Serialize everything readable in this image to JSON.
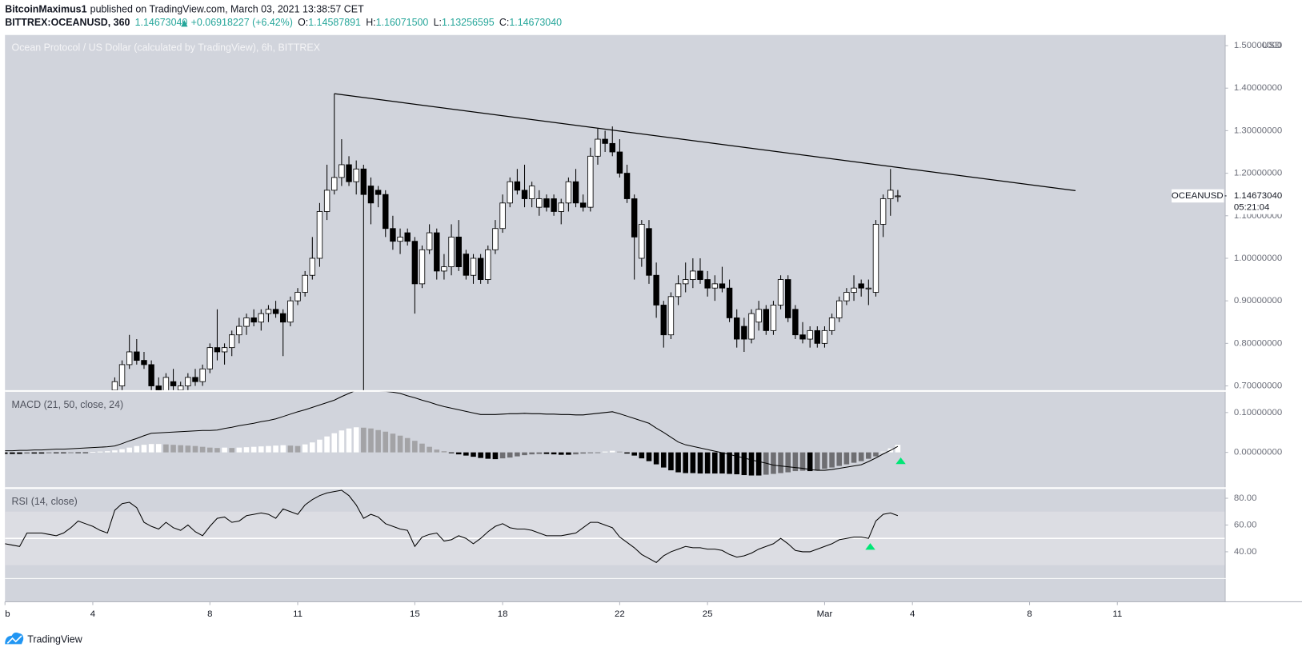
{
  "header": {
    "author": "BitcoinMaximus1",
    "published": "published on TradingView.com, March 03, 2021 13:38:57 CET",
    "symbol": "BITTREX:OCEANUSD, 360",
    "last": "1.14673040",
    "change": "+0.06918227 (+6.42%)",
    "o_label": "O:",
    "o": "1.14587891",
    "h_label": "H:",
    "h": "1.16071500",
    "l_label": "L:",
    "l": "1.13256595",
    "c_label": "C:",
    "c": "1.14673040"
  },
  "footer": {
    "brand": "TradingView"
  },
  "chart_data": {
    "type": "candlestick",
    "title": "Ocean Protocol / US Dollar (calculated by TradingView), 6h, BITTREX",
    "currency": "USD",
    "colors": {
      "up": "#ffffff",
      "down": "#000000",
      "wick": "#000000",
      "trendline": "#000000"
    },
    "xlim": [
      0,
      41.67
    ],
    "xticks": [
      {
        "value": 0,
        "label": "b"
      },
      {
        "value": 3,
        "label": "4"
      },
      {
        "value": 7,
        "label": "8"
      },
      {
        "value": 10,
        "label": "11"
      },
      {
        "value": 14,
        "label": "15"
      },
      {
        "value": 17,
        "label": "18"
      },
      {
        "value": 21,
        "label": "22"
      },
      {
        "value": 24,
        "label": "25"
      },
      {
        "value": 28,
        "label": "Mar"
      },
      {
        "value": 31,
        "label": "4"
      },
      {
        "value": 35,
        "label": "8"
      },
      {
        "value": 38,
        "label": "11"
      }
    ],
    "ylim": [
      0.69,
      1.525
    ],
    "yticks": [
      {
        "value": 1.5,
        "label": "1.50000000"
      },
      {
        "value": 1.4,
        "label": "1.40000000"
      },
      {
        "value": 1.3,
        "label": "1.30000000"
      },
      {
        "value": 1.2,
        "label": "1.20000000"
      },
      {
        "value": 1.1,
        "label": "1.10000000"
      },
      {
        "value": 1.0,
        "label": "1.00000000"
      },
      {
        "value": 0.9,
        "label": "0.90000000"
      },
      {
        "value": 0.8,
        "label": "0.80000000"
      },
      {
        "value": 0.7,
        "label": "0.70000000"
      }
    ],
    "price_tag": {
      "symbol": "OCEANUSD",
      "price": "1.14673040",
      "countdown": "05:21:04"
    },
    "trendline": {
      "x": [
        11.25,
        36.57
      ],
      "y": [
        1.387,
        1.159
      ]
    },
    "x": [
      0,
      0.25,
      0.5,
      0.75,
      1,
      1.25,
      1.5,
      1.75,
      2,
      2.25,
      2.5,
      2.75,
      3,
      3.25,
      3.5,
      3.75,
      4,
      4.25,
      4.5,
      4.75,
      5,
      5.25,
      5.5,
      5.75,
      6,
      6.25,
      6.5,
      6.75,
      7,
      7.25,
      7.5,
      7.75,
      8,
      8.25,
      8.5,
      8.75,
      9,
      9.25,
      9.5,
      9.75,
      10,
      10.25,
      10.5,
      10.75,
      11,
      11.25,
      11.5,
      11.75,
      12,
      12.25,
      12.5,
      12.75,
      13,
      13.25,
      13.5,
      13.75,
      14,
      14.25,
      14.5,
      14.75,
      15,
      15.25,
      15.5,
      15.75,
      16,
      16.25,
      16.5,
      16.75,
      17,
      17.25,
      17.5,
      17.75,
      18,
      18.25,
      18.5,
      18.75,
      19,
      19.25,
      19.5,
      19.75,
      20,
      20.25,
      20.5,
      20.75,
      21,
      21.25,
      21.5,
      21.75,
      22,
      22.25,
      22.5,
      22.75,
      23,
      23.25,
      23.5,
      23.75,
      24,
      24.25,
      24.5,
      24.75,
      25,
      25.25,
      25.5,
      25.75,
      26,
      26.25,
      26.5,
      26.75,
      27,
      27.25,
      27.5,
      27.75,
      28,
      28.25,
      28.5,
      28.75,
      29,
      29.25,
      29.5,
      29.75,
      30,
      30.25,
      30.5
    ],
    "candles": [
      null,
      null,
      null,
      null,
      null,
      null,
      null,
      null,
      null,
      null,
      null,
      null,
      null,
      null,
      null,
      [
        0.69,
        0.72,
        0.68,
        0.71
      ],
      [
        0.7,
        0.76,
        0.69,
        0.75
      ],
      [
        0.75,
        0.82,
        0.74,
        0.78
      ],
      [
        0.78,
        0.81,
        0.75,
        0.76
      ],
      [
        0.76,
        0.78,
        0.74,
        0.75
      ],
      [
        0.75,
        0.76,
        0.69,
        0.7
      ],
      [
        0.7,
        0.72,
        0.66,
        0.68
      ],
      [
        0.68,
        0.73,
        0.67,
        0.72
      ],
      [
        0.71,
        0.74,
        0.69,
        0.7
      ],
      [
        0.69,
        0.71,
        0.67,
        0.7
      ],
      [
        0.7,
        0.73,
        0.69,
        0.72
      ],
      [
        0.72,
        0.74,
        0.7,
        0.71
      ],
      [
        0.71,
        0.75,
        0.7,
        0.74
      ],
      [
        0.74,
        0.8,
        0.73,
        0.79
      ],
      [
        0.79,
        0.88,
        0.76,
        0.78
      ],
      [
        0.78,
        0.8,
        0.75,
        0.79
      ],
      [
        0.79,
        0.83,
        0.77,
        0.82
      ],
      [
        0.82,
        0.86,
        0.8,
        0.84
      ],
      [
        0.84,
        0.87,
        0.82,
        0.86
      ],
      [
        0.86,
        0.88,
        0.84,
        0.85
      ],
      [
        0.85,
        0.88,
        0.83,
        0.87
      ],
      [
        0.87,
        0.89,
        0.85,
        0.88
      ],
      [
        0.88,
        0.9,
        0.86,
        0.87
      ],
      [
        0.87,
        0.88,
        0.77,
        0.85
      ],
      [
        0.85,
        0.91,
        0.84,
        0.9
      ],
      [
        0.9,
        0.93,
        0.89,
        0.92
      ],
      [
        0.92,
        0.97,
        0.91,
        0.96
      ],
      [
        0.96,
        1.05,
        0.95,
        1.0
      ],
      [
        1.0,
        1.13,
        0.98,
        1.11
      ],
      [
        1.11,
        1.22,
        1.09,
        1.16
      ],
      [
        1.16,
        1.387,
        1.15,
        1.19
      ],
      [
        1.19,
        1.28,
        1.17,
        1.22
      ],
      [
        1.22,
        1.24,
        1.17,
        1.18
      ],
      [
        1.18,
        1.23,
        1.15,
        1.21
      ],
      [
        1.21,
        1.22,
        0.69,
        1.15
      ],
      [
        1.17,
        1.19,
        1.08,
        1.13
      ],
      [
        1.16,
        1.17,
        1.12,
        1.15
      ],
      [
        1.15,
        1.16,
        1.05,
        1.07
      ],
      [
        1.07,
        1.1,
        1.02,
        1.04
      ],
      [
        1.04,
        1.07,
        1.01,
        1.05
      ],
      [
        1.06,
        1.07,
        1.03,
        1.04
      ],
      [
        1.04,
        1.05,
        0.87,
        0.94
      ],
      [
        0.94,
        1.03,
        0.93,
        1.02
      ],
      [
        1.02,
        1.08,
        1.01,
        1.06
      ],
      [
        1.06,
        1.07,
        0.95,
        0.97
      ],
      [
        0.97,
        1.01,
        0.95,
        0.98
      ],
      [
        0.98,
        1.08,
        0.96,
        1.05
      ],
      [
        1.05,
        1.09,
        0.97,
        0.98
      ],
      [
        1.01,
        1.02,
        0.95,
        0.96
      ],
      [
        0.96,
        1.01,
        0.94,
        1.0
      ],
      [
        1.0,
        1.01,
        0.94,
        0.95
      ],
      [
        0.95,
        1.03,
        0.94,
        1.02
      ],
      [
        1.02,
        1.09,
        1.01,
        1.07
      ],
      [
        1.07,
        1.15,
        1.06,
        1.13
      ],
      [
        1.13,
        1.19,
        1.12,
        1.18
      ],
      [
        1.18,
        1.21,
        1.15,
        1.16
      ],
      [
        1.16,
        1.22,
        1.12,
        1.14
      ],
      [
        1.14,
        1.18,
        1.12,
        1.17
      ],
      [
        1.12,
        1.16,
        1.1,
        1.14
      ],
      [
        1.14,
        1.15,
        1.11,
        1.12
      ],
      [
        1.14,
        1.15,
        1.1,
        1.11
      ],
      [
        1.11,
        1.14,
        1.08,
        1.13
      ],
      [
        1.13,
        1.19,
        1.11,
        1.18
      ],
      [
        1.18,
        1.21,
        1.12,
        1.13
      ],
      [
        1.13,
        1.15,
        1.11,
        1.12
      ],
      [
        1.12,
        1.26,
        1.11,
        1.24
      ],
      [
        1.24,
        1.305,
        1.22,
        1.28
      ],
      [
        1.28,
        1.3,
        1.25,
        1.27
      ],
      [
        1.27,
        1.31,
        1.24,
        1.25
      ],
      [
        1.25,
        1.28,
        1.19,
        1.2
      ],
      [
        1.2,
        1.22,
        1.13,
        1.14
      ],
      [
        1.14,
        1.15,
        0.95,
        1.05
      ],
      [
        1.0,
        1.09,
        0.98,
        1.08
      ],
      [
        1.07,
        1.09,
        0.94,
        0.96
      ],
      [
        0.96,
        0.99,
        0.86,
        0.89
      ],
      [
        0.89,
        0.9,
        0.79,
        0.82
      ],
      [
        0.82,
        0.92,
        0.81,
        0.91
      ],
      [
        0.91,
        0.96,
        0.89,
        0.94
      ],
      [
        0.94,
        0.99,
        0.92,
        0.95
      ],
      [
        0.95,
        1.0,
        0.93,
        0.97
      ],
      [
        0.97,
        1.0,
        0.94,
        0.95
      ],
      [
        0.95,
        0.97,
        0.91,
        0.93
      ],
      [
        0.93,
        0.96,
        0.9,
        0.94
      ],
      [
        0.94,
        0.98,
        0.92,
        0.93
      ],
      [
        0.93,
        0.95,
        0.85,
        0.86
      ],
      [
        0.86,
        0.88,
        0.79,
        0.81
      ],
      [
        0.84,
        0.86,
        0.78,
        0.81
      ],
      [
        0.81,
        0.88,
        0.8,
        0.87
      ],
      [
        0.85,
        0.9,
        0.83,
        0.88
      ],
      [
        0.88,
        0.89,
        0.82,
        0.83
      ],
      [
        0.83,
        0.9,
        0.82,
        0.89
      ],
      [
        0.89,
        0.96,
        0.88,
        0.95
      ],
      [
        0.95,
        0.96,
        0.85,
        0.86
      ],
      [
        0.88,
        0.89,
        0.81,
        0.82
      ],
      [
        0.82,
        0.85,
        0.8,
        0.81
      ],
      [
        0.81,
        0.84,
        0.79,
        0.83
      ],
      [
        0.83,
        0.84,
        0.79,
        0.8
      ],
      [
        0.8,
        0.84,
        0.79,
        0.83
      ],
      [
        0.83,
        0.87,
        0.82,
        0.86
      ],
      [
        0.86,
        0.91,
        0.85,
        0.9
      ],
      [
        0.9,
        0.93,
        0.89,
        0.92
      ],
      [
        0.92,
        0.96,
        0.9,
        0.93
      ],
      [
        0.94,
        0.95,
        0.91,
        0.93
      ],
      [
        0.93,
        0.95,
        0.89,
        0.93
      ],
      [
        0.92,
        1.09,
        0.91,
        1.08
      ],
      [
        1.08,
        1.15,
        1.05,
        1.14
      ],
      [
        1.14,
        1.21,
        1.1,
        1.16
      ],
      [
        1.14587891,
        1.160715,
        1.13256595,
        1.1467304
      ]
    ],
    "macd": {
      "title": "MACD (21, 50, close, 24)",
      "ylim": [
        -0.0875,
        0.152
      ],
      "yticks": [
        {
          "value": 0.1,
          "label": "0.10000000"
        },
        {
          "value": 0,
          "label": "0.00000000"
        }
      ],
      "line_color": "#000000",
      "hist_colors": {
        "pos_up": "#ffffff",
        "pos_down": "#a3a3a6",
        "neg_down": "#000000",
        "neg_up": "#6e6e72"
      },
      "line": [
        0.004,
        0.004,
        0.005,
        0.005,
        0.006,
        0.006,
        0.007,
        0.008,
        0.008,
        0.009,
        0.01,
        0.011,
        0.012,
        0.013,
        0.014,
        0.016,
        0.022,
        0.029,
        0.035,
        0.042,
        0.048,
        0.049,
        0.05,
        0.051,
        0.052,
        0.053,
        0.054,
        0.055,
        0.055,
        0.056,
        0.06,
        0.063,
        0.067,
        0.07,
        0.073,
        0.077,
        0.08,
        0.084,
        0.09,
        0.096,
        0.102,
        0.107,
        0.113,
        0.119,
        0.125,
        0.131,
        0.14,
        0.148,
        0.156,
        0.156,
        0.155,
        0.154,
        0.153,
        0.151,
        0.148,
        0.142,
        0.137,
        0.131,
        0.126,
        0.12,
        0.115,
        0.111,
        0.107,
        0.103,
        0.099,
        0.095,
        0.095,
        0.095,
        0.096,
        0.097,
        0.097,
        0.098,
        0.097,
        0.097,
        0.096,
        0.096,
        0.095,
        0.095,
        0.094,
        0.094,
        0.096,
        0.098,
        0.1,
        0.102,
        0.097,
        0.091,
        0.085,
        0.079,
        0.073,
        0.061,
        0.05,
        0.038,
        0.026,
        0.019,
        0.015,
        0.011,
        0.007,
        0.003,
        -0.001,
        -0.005,
        -0.01,
        -0.014,
        -0.019,
        -0.023,
        -0.027,
        -0.032,
        -0.034,
        -0.036,
        -0.038,
        -0.04,
        -0.043,
        -0.045,
        -0.045,
        -0.043,
        -0.04,
        -0.037,
        -0.034,
        -0.031,
        -0.023,
        -0.014,
        -0.004,
        0.005,
        0.015
      ],
      "histogram": [
        -0.004,
        -0.004,
        -0.004,
        -0.003,
        -0.003,
        -0.003,
        -0.002,
        -0.002,
        -0.002,
        -0.001,
        -0.001,
        -0.001,
        0.001,
        0.002,
        0.003,
        0.005,
        0.008,
        0.012,
        0.016,
        0.019,
        0.021,
        0.021,
        0.02,
        0.019,
        0.018,
        0.017,
        0.016,
        0.014,
        0.012,
        0.011,
        0.012,
        0.011,
        0.012,
        0.013,
        0.014,
        0.015,
        0.016,
        0.017,
        0.018,
        0.017,
        0.016,
        0.02,
        0.025,
        0.032,
        0.04,
        0.048,
        0.055,
        0.06,
        0.063,
        0.062,
        0.06,
        0.056,
        0.052,
        0.047,
        0.042,
        0.036,
        0.029,
        0.022,
        0.014,
        0.007,
        0.003,
        -0.002,
        -0.005,
        -0.008,
        -0.011,
        -0.014,
        -0.016,
        -0.017,
        -0.015,
        -0.013,
        -0.01,
        -0.007,
        -0.005,
        -0.004,
        -0.004,
        -0.005,
        -0.006,
        -0.006,
        -0.005,
        -0.003,
        -0.002,
        -0.001,
        0.002,
        0.004,
        0.002,
        -0.003,
        -0.008,
        -0.015,
        -0.022,
        -0.03,
        -0.038,
        -0.045,
        -0.05,
        -0.052,
        -0.052,
        -0.053,
        -0.053,
        -0.053,
        -0.053,
        -0.054,
        -0.055,
        -0.057,
        -0.058,
        -0.058,
        -0.056,
        -0.054,
        -0.052,
        -0.05,
        -0.047,
        -0.046,
        -0.047,
        -0.045,
        -0.041,
        -0.038,
        -0.034,
        -0.03,
        -0.026,
        -0.022,
        -0.016,
        -0.01,
        0.002,
        0.01,
        0.019
      ],
      "signals": [
        {
          "x": 30.6,
          "y": -0.021,
          "color": "#00e676"
        }
      ]
    },
    "rsi": {
      "title": "RSI (14, close)",
      "ylim": [
        20,
        87
      ],
      "yticks": [
        {
          "value": 80,
          "label": "80.00"
        },
        {
          "value": 60,
          "label": "60.00"
        },
        {
          "value": 40,
          "label": "40.00"
        }
      ],
      "band": [
        30,
        70
      ],
      "midline": 50,
      "line_color": "#000000",
      "values": [
        46,
        45,
        44,
        54,
        54,
        54,
        53,
        52,
        54,
        58,
        63,
        61,
        59,
        56,
        54,
        71,
        76,
        77,
        73,
        62,
        59,
        57,
        62,
        58,
        56,
        60,
        55,
        52,
        59,
        65,
        66,
        62,
        63,
        67,
        68,
        69,
        68,
        65,
        72,
        70,
        68,
        75,
        79,
        82,
        84,
        85,
        86,
        82,
        75,
        65,
        68,
        66,
        61,
        59,
        57,
        56,
        44,
        51,
        53,
        54,
        48,
        49,
        52,
        50,
        46,
        50,
        55,
        59,
        61,
        58,
        57,
        57,
        56,
        54,
        52,
        52,
        52,
        53,
        54,
        58,
        62,
        62,
        60,
        58,
        51,
        47,
        43,
        38,
        35,
        32,
        37,
        40,
        42,
        44,
        43,
        43,
        42,
        42,
        41,
        38,
        36,
        37,
        39,
        42,
        44,
        46,
        50,
        46,
        41,
        40,
        40,
        42,
        44,
        46,
        49,
        50,
        51,
        51,
        50,
        63,
        68,
        69,
        67
      ],
      "signals": [
        {
          "x": 29.56,
          "y": 44,
          "color": "#00e676"
        }
      ]
    }
  }
}
